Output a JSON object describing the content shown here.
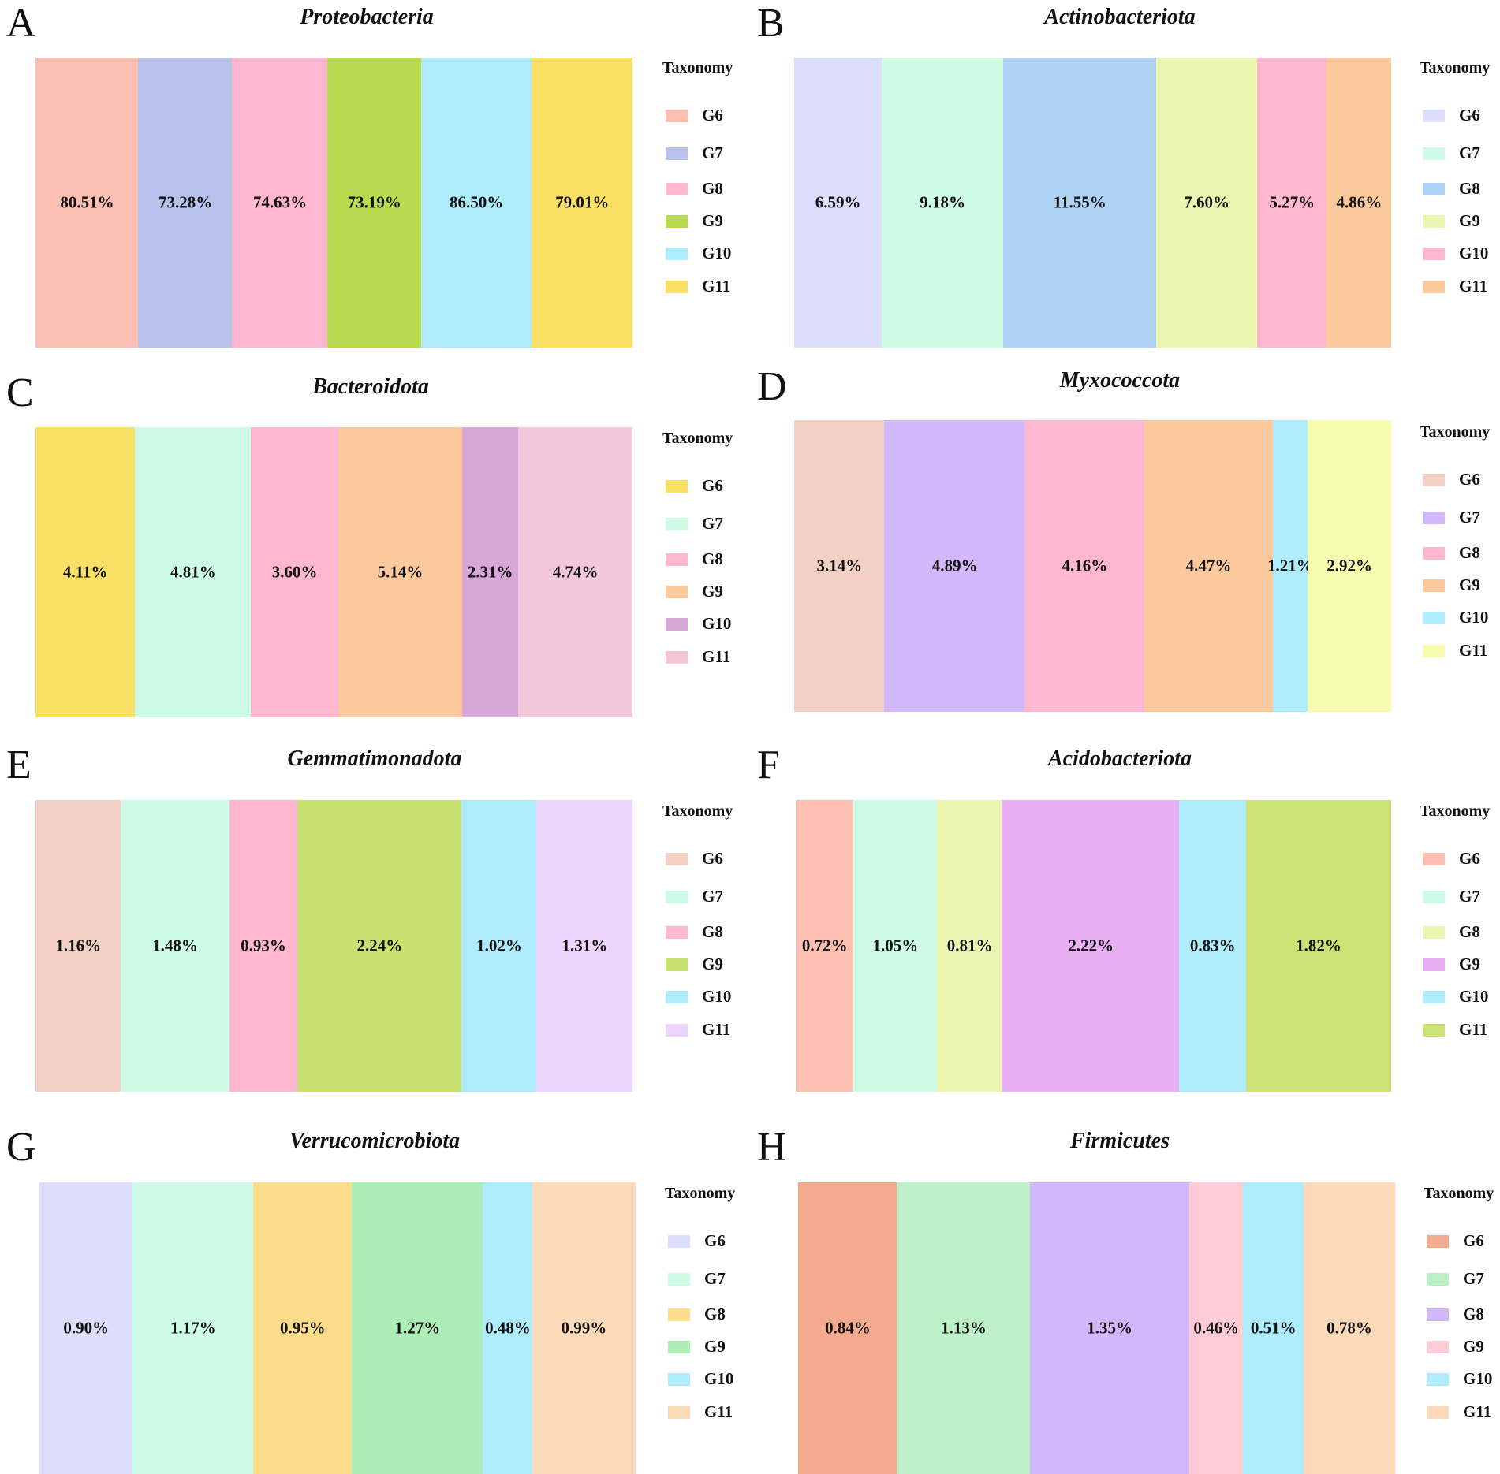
{
  "chart_data": [
    {
      "type": "bar",
      "panel": "A",
      "title": "Proteobacteria",
      "legend_title": "Taxonomy",
      "categories": [
        "G6",
        "G7",
        "G8",
        "G9",
        "G10",
        "G11"
      ],
      "values": [
        80.51,
        73.28,
        74.63,
        73.19,
        86.5,
        79.01
      ],
      "labels": [
        "80.51%",
        "73.28%",
        "74.63%",
        "73.19%",
        "86.50%",
        "79.01%"
      ],
      "colors": [
        "#FBBFB2",
        "#B8C2EA",
        "#FFB6CF",
        "#BADB4F",
        "#AEEBFB",
        "#FAE165"
      ]
    },
    {
      "type": "bar",
      "panel": "B",
      "title": "Actinobacteriota",
      "legend_title": "Taxonomy",
      "categories": [
        "G6",
        "G7",
        "G8",
        "G9",
        "G10",
        "G11"
      ],
      "values": [
        6.59,
        9.18,
        11.55,
        7.6,
        5.27,
        4.86
      ],
      "labels": [
        "6.59%",
        "9.18%",
        "11.55%",
        "7.60%",
        "5.27%",
        "4.86%"
      ],
      "colors": [
        "#DCDFFB",
        "#CDFBE6",
        "#AED3F5",
        "#EAF5B0",
        "#FFB6CF",
        "#FCC99C"
      ]
    },
    {
      "type": "bar",
      "panel": "C",
      "title": "Bacteroidota",
      "legend_title": "Taxonomy",
      "categories": [
        "G6",
        "G7",
        "G8",
        "G9",
        "G10",
        "G11"
      ],
      "values": [
        4.11,
        4.81,
        3.6,
        5.14,
        2.31,
        4.74
      ],
      "labels": [
        "4.11%",
        "4.81%",
        "3.60%",
        "5.14%",
        "2.31%",
        "4.74%"
      ],
      "colors": [
        "#FAE165",
        "#CDFBE6",
        "#FFB6CF",
        "#FCC99C",
        "#D5A8D8",
        "#F2C7DA"
      ]
    },
    {
      "type": "bar",
      "panel": "D",
      "title": "Myxococcota",
      "legend_title": "Taxonomy",
      "categories": [
        "G6",
        "G7",
        "G8",
        "G9",
        "G10",
        "G11"
      ],
      "values": [
        3.14,
        4.89,
        4.16,
        4.47,
        1.21,
        2.92
      ],
      "labels": [
        "3.14%",
        "4.89%",
        "4.16%",
        "4.47%",
        "1.21%",
        "2.92%"
      ],
      "colors": [
        "#F3D0C4",
        "#D3B7FB",
        "#FFB6CF",
        "#FCC99C",
        "#AEEBFB",
        "#F7FBB0"
      ]
    },
    {
      "type": "bar",
      "panel": "E",
      "title": "Gemmatimonadota",
      "legend_title": "Taxonomy",
      "categories": [
        "G6",
        "G7",
        "G8",
        "G9",
        "G10",
        "G11"
      ],
      "values": [
        1.16,
        1.48,
        0.93,
        2.24,
        1.02,
        1.31
      ],
      "labels": [
        "1.16%",
        "1.48%",
        "0.93%",
        "2.24%",
        "1.02%",
        "1.31%"
      ],
      "colors": [
        "#F3D0C4",
        "#CDFBE6",
        "#FFB6CF",
        "#C8E271",
        "#AEEBFB",
        "#ECD5FD"
      ]
    },
    {
      "type": "bar",
      "panel": "F",
      "title": "Acidobacteriota",
      "legend_title": "Taxonomy",
      "categories": [
        "G6",
        "G7",
        "G8",
        "G9",
        "G10",
        "G11"
      ],
      "values": [
        0.72,
        1.05,
        0.81,
        2.22,
        0.83,
        1.82
      ],
      "labels": [
        "0.72%",
        "1.05%",
        "0.81%",
        "2.22%",
        "0.83%",
        "1.82%"
      ],
      "colors": [
        "#FDBFB2",
        "#CDFBE6",
        "#EAF5B0",
        "#E8AFF5",
        "#AEEBFB",
        "#CBE276"
      ]
    },
    {
      "type": "bar",
      "panel": "G",
      "title": "Verrucomicrobiota",
      "legend_title": "Taxonomy",
      "categories": [
        "G6",
        "G7",
        "G8",
        "G9",
        "G10",
        "G11"
      ],
      "values": [
        0.9,
        1.17,
        0.95,
        1.27,
        0.48,
        0.99
      ],
      "labels": [
        "0.90%",
        "1.17%",
        "0.95%",
        "1.27%",
        "0.48%",
        "0.99%"
      ],
      "colors": [
        "#DCDFFB",
        "#CDFBE6",
        "#FCDC8B",
        "#ADEDB6",
        "#AEEBFB",
        "#FCD9B8"
      ]
    },
    {
      "type": "bar",
      "panel": "H",
      "title": "Firmicutes",
      "legend_title": "Taxonomy",
      "categories": [
        "G6",
        "G7",
        "G8",
        "G9",
        "G10",
        "G11"
      ],
      "values": [
        0.84,
        1.13,
        1.35,
        0.46,
        0.51,
        0.78
      ],
      "labels": [
        "0.84%",
        "1.13%",
        "1.35%",
        "0.46%",
        "0.51%",
        "0.78%"
      ],
      "colors": [
        "#F3AA8F",
        "#BEF0C8",
        "#D3B7FB",
        "#FFCCD6",
        "#AEEBFB",
        "#FCD9B8"
      ]
    }
  ]
}
